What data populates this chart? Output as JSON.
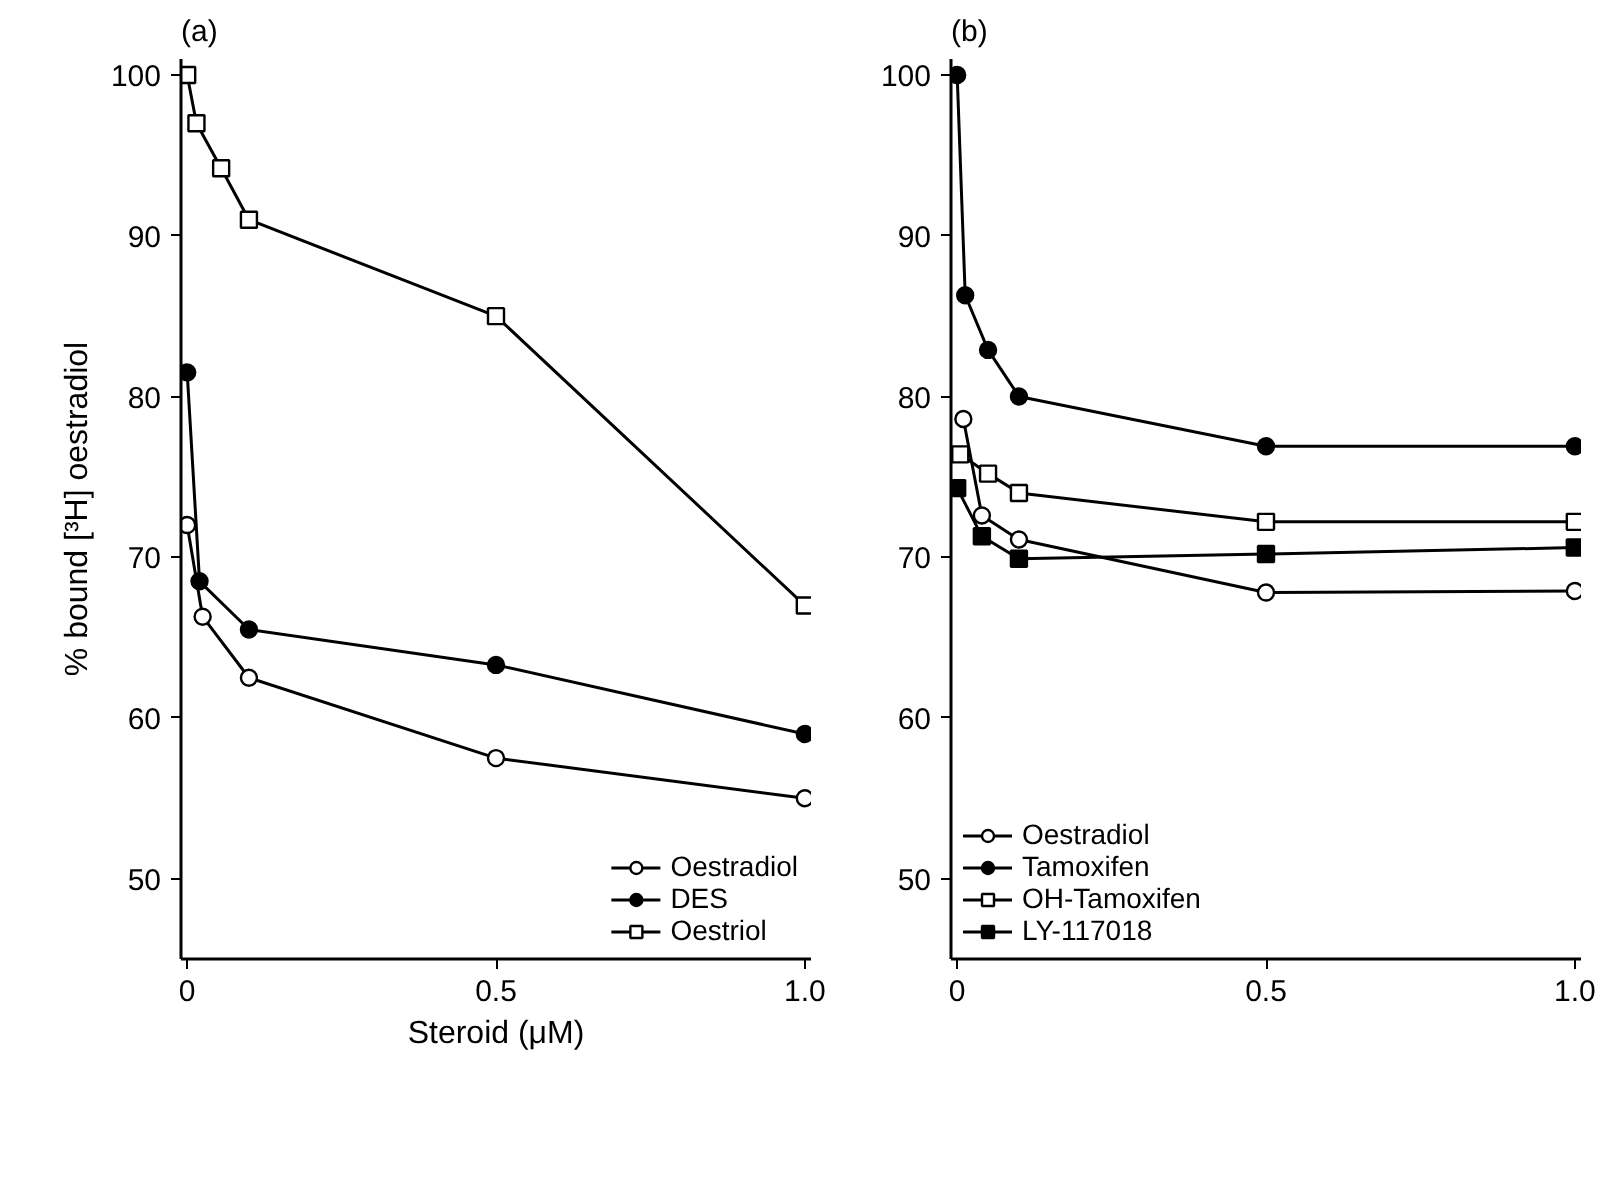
{
  "chart_data": [
    {
      "type": "line",
      "title": "(a)",
      "ylabel": "% bound [³H] oestradiol",
      "xlabel": "Steroid (μM)",
      "xlim": [
        -0.01,
        1.01
      ],
      "ylim": [
        45,
        101
      ],
      "xticks": [
        0,
        0.5,
        {
          "value": 1.0,
          "label": "1.0"
        }
      ],
      "yticks": [
        50,
        60,
        70,
        80,
        90,
        100
      ],
      "grid": false,
      "legend": "bottom right",
      "series": [
        {
          "name": "Oestradiol",
          "color": "#ffffff",
          "marker": "circle",
          "x": [
            0,
            0.025,
            0.1,
            0.5,
            1.0
          ],
          "values": [
            72,
            66.3,
            62.5,
            57.5,
            55
          ]
        },
        {
          "name": "DES",
          "color": "#000000",
          "marker": "circle",
          "x": [
            0,
            0.02,
            0.1,
            0.5,
            1.0
          ],
          "values": [
            81.5,
            68.5,
            65.5,
            63.3,
            59
          ]
        },
        {
          "name": "Oestriol",
          "color": "#ffffff",
          "marker": "square",
          "x": [
            0,
            0.015,
            0.055,
            0.1,
            0.5,
            1.0
          ],
          "values": [
            100,
            97,
            94.2,
            91,
            85,
            67
          ]
        }
      ]
    },
    {
      "type": "line",
      "title": "(b)",
      "xlim": [
        -0.01,
        1.01
      ],
      "ylim": [
        45,
        101
      ],
      "xticks": [
        0,
        0.5,
        {
          "value": 1.0,
          "label": "1.0"
        }
      ],
      "yticks": [
        50,
        60,
        70,
        80,
        90,
        100
      ],
      "grid": false,
      "legend": "bottom left",
      "series": [
        {
          "name": "Oestradiol",
          "color": "#ffffff",
          "marker": "circle",
          "x": [
            0.01,
            0.04,
            0.1,
            0.5,
            1.0
          ],
          "values": [
            78.6,
            72.6,
            71.1,
            67.8,
            67.9
          ]
        },
        {
          "name": "Tamoxifen",
          "color": "#000000",
          "marker": "circle",
          "x": [
            0,
            0.013,
            0.05,
            0.1,
            0.5,
            1.0
          ],
          "values": [
            100,
            86.3,
            82.9,
            80,
            76.9,
            76.9
          ]
        },
        {
          "name": "OH-Tamoxifen",
          "color": "#ffffff",
          "marker": "square",
          "x": [
            0.005,
            0.05,
            0.1,
            0.5,
            1.0
          ],
          "values": [
            76.4,
            75.2,
            74,
            72.2,
            72.2
          ]
        },
        {
          "name": "LY-117018",
          "color": "#000000",
          "marker": "square",
          "x": [
            0,
            0.04,
            0.1,
            0.5,
            1.0
          ],
          "values": [
            74.3,
            71.3,
            69.9,
            70.2,
            70.6
          ]
        }
      ]
    }
  ]
}
